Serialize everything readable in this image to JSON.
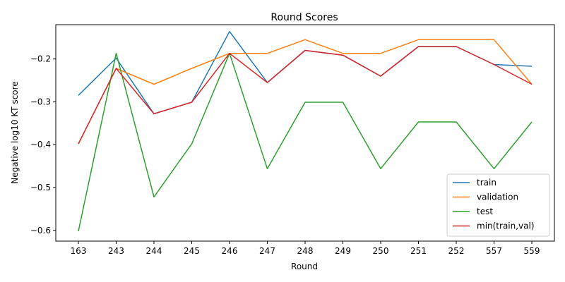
{
  "chart_data": {
    "type": "line",
    "title": "Round Scores",
    "xlabel": "Round",
    "ylabel": "Negative log10 KT score",
    "categories": [
      "163",
      "243",
      "244",
      "245",
      "246",
      "247",
      "248",
      "249",
      "250",
      "251",
      "252",
      "557",
      "559"
    ],
    "ylim": [
      -0.625,
      -0.12
    ],
    "yticks": [
      -0.6,
      -0.5,
      -0.4,
      -0.3,
      -0.2
    ],
    "ytick_labels": [
      "−0.6",
      "−0.5",
      "−0.4",
      "−0.3",
      "−0.2"
    ],
    "grid": false,
    "legend_position": "bottom-right",
    "series": [
      {
        "name": "train",
        "color": "#1f77b4",
        "values": [
          -0.285,
          -0.198,
          -0.328,
          -0.301,
          -0.136,
          -0.255,
          -0.18,
          -0.191,
          -0.24,
          -0.171,
          -0.171,
          -0.213,
          -0.217
        ]
      },
      {
        "name": "validation",
        "color": "#ff7f0e",
        "values": [
          -0.398,
          -0.222,
          -0.259,
          -0.222,
          -0.187,
          -0.187,
          -0.155,
          -0.187,
          -0.187,
          -0.155,
          -0.155,
          -0.155,
          -0.259
        ]
      },
      {
        "name": "test",
        "color": "#2ca02c",
        "values": [
          -0.602,
          -0.187,
          -0.522,
          -0.398,
          -0.187,
          -0.456,
          -0.301,
          -0.301,
          -0.456,
          -0.347,
          -0.347,
          -0.456,
          -0.347
        ]
      },
      {
        "name": "min(train,val)",
        "color": "#d62728",
        "values": [
          -0.398,
          -0.222,
          -0.328,
          -0.301,
          -0.187,
          -0.255,
          -0.18,
          -0.191,
          -0.24,
          -0.171,
          -0.171,
          -0.213,
          -0.259
        ]
      }
    ]
  }
}
